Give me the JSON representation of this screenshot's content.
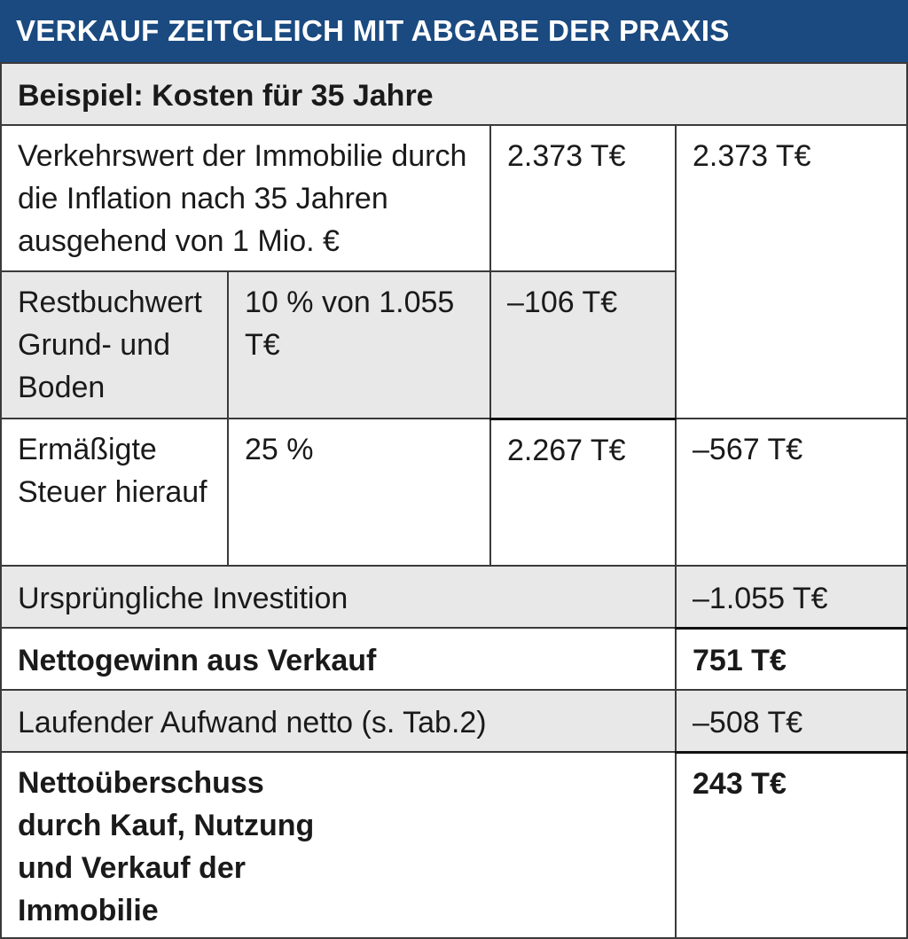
{
  "title": "VERKAUF ZEITGLEICH MIT ABGABE DER PRAXIS",
  "subtitle": "Beispiel: Kosten für 35 Jahre",
  "rows": {
    "verkehrswert": {
      "label": "Verkehrswert der Immobilie durch die Inflation nach 35 Jahren ausgehend von 1 Mio. €",
      "value1": "2.373 T€",
      "value2": "2.373 T€"
    },
    "restbuchwert": {
      "label": "Restbuchwert Grund- und Boden",
      "detail": "10 % von 1.055 T€",
      "value1": "–106 T€"
    },
    "steuer": {
      "label": "Ermäßigte Steuer hierauf",
      "detail": "25 %",
      "value1": "2.267 T€",
      "value2": "–567 T€"
    },
    "investition": {
      "label": "Ursprüngliche Investition",
      "value": "–1.055 T€"
    },
    "nettogewinn": {
      "label": "Nettogewinn aus Verkauf",
      "value": "751 T€"
    },
    "aufwand": {
      "label": "Laufender Aufwand netto (s. Tab.2)",
      "value": "–508 T€"
    },
    "ueberschuss": {
      "label": "Nettoüberschuss durch Kauf, Nutzung und Verkauf der Immobilie",
      "value": "243 T€"
    }
  }
}
